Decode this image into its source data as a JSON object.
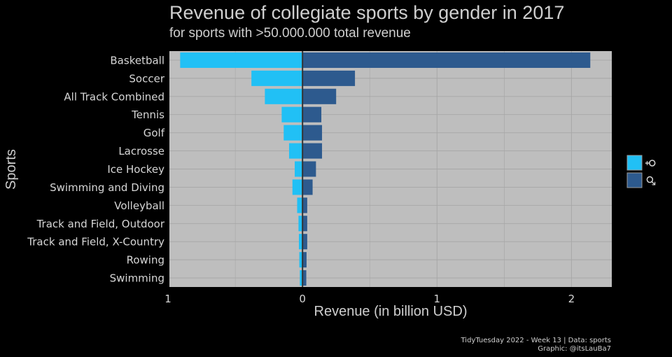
{
  "chart_data": {
    "type": "bar",
    "orientation": "horizontal-diverging",
    "title": "Revenue of collegiate sports by gender in 2017",
    "subtitle": "for sports with >50.000.000 total revenue",
    "xlabel": "Revenue (in billion USD)",
    "ylabel": "Sports",
    "xlim": [
      -0.99,
      2.3
    ],
    "x_ticks": [
      {
        "value": -1,
        "label": "1"
      },
      {
        "value": 0,
        "label": "0"
      },
      {
        "value": 1,
        "label": "1"
      },
      {
        "value": 2,
        "label": "2"
      }
    ],
    "grid": true,
    "legend_position": "right",
    "categories": [
      "Basketball",
      "Soccer",
      "All Track Combined",
      "Tennis",
      "Golf",
      "Lacrosse",
      "Ice Hockey",
      "Swimming and Diving",
      "Volleyball",
      "Track and Field, Outdoor",
      "Track and Field, X-Country",
      "Rowing",
      "Swimming"
    ],
    "series": [
      {
        "name": "♀",
        "color": "#21c0f5",
        "values": [
          0.91,
          0.38,
          0.28,
          0.155,
          0.14,
          0.1,
          0.058,
          0.075,
          0.04,
          0.03,
          0.027,
          0.024,
          0.02
        ]
      },
      {
        "name": "♂",
        "color": "#2d5a8e",
        "values": [
          2.14,
          0.39,
          0.25,
          0.14,
          0.145,
          0.145,
          0.1,
          0.075,
          0.035,
          0.035,
          0.035,
          0.03,
          0.028
        ]
      }
    ],
    "caption_lines": [
      "TidyTuesday 2022 - Week 13 | Data: sports",
      "Graphic: @itsLauBa7"
    ]
  },
  "colors": {
    "background": "#000000",
    "panel": "#bebebe",
    "grid": "#a6a6a6",
    "zero_line": "#333333"
  }
}
